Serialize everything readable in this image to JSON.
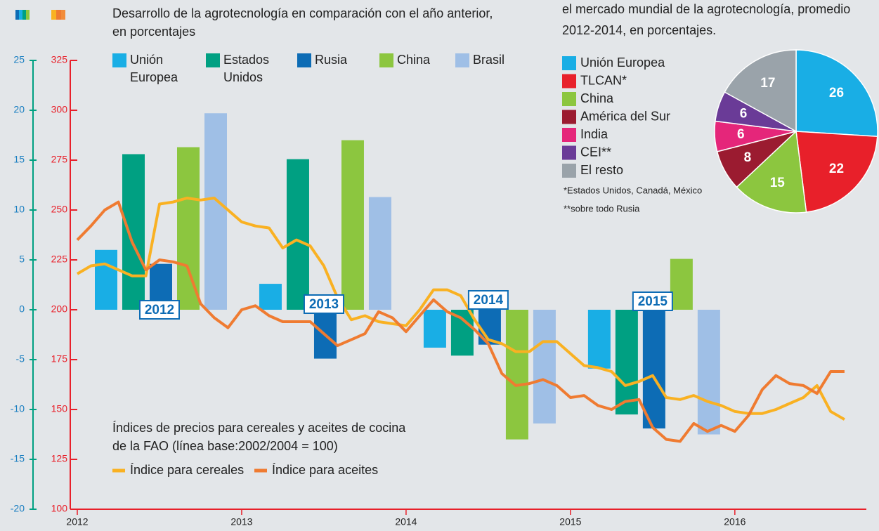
{
  "chart_data": [
    {
      "type": "combo",
      "title": [
        "Desarrollo de la agrotecnología en comparación con el año anterior,",
        "en porcentajes"
      ],
      "categories": [
        "2012",
        "2013",
        "2014",
        "2015"
      ],
      "bar_series": [
        {
          "name": "Unión Europea",
          "color": "#19aee5",
          "values": [
            6.0,
            2.6,
            -3.8,
            -5.9
          ]
        },
        {
          "name": "Estados Unidos",
          "color": "#00a082",
          "values": [
            15.6,
            15.1,
            -4.6,
            -10.5
          ]
        },
        {
          "name": "Rusia",
          "color": "#0d6cb5",
          "values": [
            4.6,
            -4.9,
            -3.5,
            -11.9
          ]
        },
        {
          "name": "China",
          "color": "#8cc63f",
          "values": [
            16.3,
            17.0,
            -13.0,
            5.1
          ]
        },
        {
          "name": "Brasil",
          "color": "#9fbfe6",
          "values": [
            19.7,
            11.3,
            -11.4,
            -12.5
          ]
        }
      ],
      "lines_title": [
        "Índices de precios para cereales y aceites de cocina",
        "de la FAO (línea base:2002/2004 = 100)"
      ],
      "x": [
        2012,
        2012.083,
        2012.167,
        2012.25,
        2012.333,
        2012.417,
        2012.5,
        2012.583,
        2012.667,
        2012.75,
        2012.833,
        2012.917,
        2013,
        2013.083,
        2013.167,
        2013.25,
        2013.333,
        2013.417,
        2013.5,
        2013.583,
        2013.667,
        2013.75,
        2013.833,
        2013.917,
        2014,
        2014.083,
        2014.167,
        2014.25,
        2014.333,
        2014.417,
        2014.5,
        2014.583,
        2014.667,
        2014.75,
        2014.833,
        2014.917,
        2015,
        2015.083,
        2015.167,
        2015.25,
        2015.333,
        2015.417,
        2015.5,
        2015.583,
        2015.667,
        2015.75,
        2015.833,
        2015.917,
        2016,
        2016.083,
        2016.167,
        2016.25,
        2016.333,
        2016.417,
        2016.5,
        2016.583,
        2016.667
      ],
      "line_series": [
        {
          "name": "Índice para cereales",
          "color": "#f9b122",
          "axis": "y2",
          "values": [
            218,
            222,
            223,
            220,
            217,
            217,
            253,
            254,
            256,
            255,
            256,
            250,
            244,
            242,
            241,
            231,
            235,
            232,
            222,
            206,
            195,
            197,
            194,
            193,
            192,
            200,
            210,
            210,
            207,
            195,
            185,
            183,
            179,
            179,
            184,
            184,
            178,
            172,
            171,
            169,
            162,
            164,
            167,
            156,
            155,
            157,
            154,
            152,
            149,
            148,
            148,
            150,
            153,
            156,
            162,
            149,
            145
          ]
        },
        {
          "name": "Índice para aceites",
          "color": "#ef7b31",
          "axis": "y2",
          "values": [
            235,
            242,
            250,
            254,
            234,
            220,
            225,
            224,
            222,
            203,
            196,
            191,
            200,
            202,
            197,
            194,
            194,
            194,
            188,
            182,
            185,
            188,
            199,
            196,
            189,
            197,
            205,
            199,
            196,
            190,
            183,
            168,
            162,
            163,
            165,
            162,
            156,
            157,
            152,
            150,
            154,
            155,
            141,
            135,
            134,
            143,
            139,
            142,
            139,
            147,
            160,
            167,
            163,
            162,
            158,
            169,
            169
          ]
        }
      ],
      "xlim": [
        2012,
        2016.8
      ],
      "xticks": [
        2012,
        2013,
        2014,
        2015,
        2016
      ],
      "ylim": [
        -20,
        25
      ],
      "yticks": [
        -20,
        -15,
        -10,
        -5,
        0,
        5,
        10,
        15,
        20,
        25
      ],
      "y2lim": [
        100,
        325
      ],
      "y2ticks": [
        100,
        125,
        150,
        175,
        200,
        225,
        250,
        275,
        300,
        325
      ]
    },
    {
      "type": "pie",
      "title": [
        "el mercado mundial de la agrotecnología, promedio",
        "2012-2014, en porcentajes."
      ],
      "categories": [
        "Unión Europea",
        "TLCAN*",
        "China",
        "América del Sur",
        "India",
        "CEI**",
        "El resto"
      ],
      "values": [
        26,
        22,
        15,
        8,
        6,
        6,
        17
      ],
      "colors": [
        "#19aee5",
        "#e8202a",
        "#8cc63f",
        "#9b1b30",
        "#e5267a",
        "#6a3b97",
        "#9aa3aa"
      ],
      "notes": [
        "*Estados Unidos, Canadá, México",
        "**sobre todo Rusia"
      ]
    }
  ]
}
